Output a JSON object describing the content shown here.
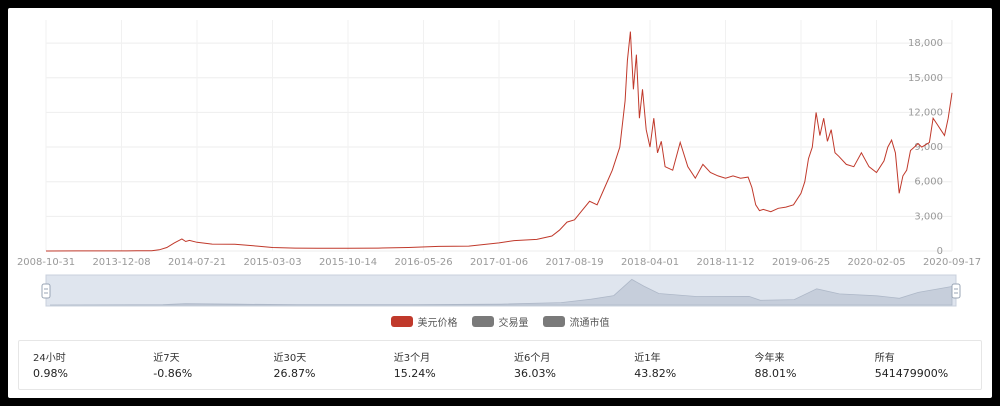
{
  "chart_data": {
    "type": "line",
    "x_tick_labels": [
      "2008-10-31",
      "2013-12-08",
      "2014-07-21",
      "2015-03-03",
      "2015-10-14",
      "2016-05-26",
      "2017-01-06",
      "2017-08-19",
      "2018-04-01",
      "2018-11-12",
      "2019-06-25",
      "2020-02-05",
      "2020-09-17"
    ],
    "y_tick_labels": [
      "0",
      "3,000",
      "6,000",
      "9,000",
      "12,000",
      "15,000",
      "18,000"
    ],
    "y_ticks": [
      0,
      3000,
      6000,
      9000,
      12000,
      15000,
      18000
    ],
    "ylim": [
      0,
      20000
    ],
    "y_axis_side": "right",
    "grid": true,
    "series": [
      {
        "name": "美元价格",
        "color": "#c0392b",
        "points": [
          [
            0,
            0
          ],
          [
            0.4,
            5
          ],
          [
            0.8,
            12
          ],
          [
            1.2,
            18
          ],
          [
            1.4,
            30
          ],
          [
            1.5,
            100
          ],
          [
            1.6,
            300
          ],
          [
            1.7,
            700
          ],
          [
            1.8,
            1050
          ],
          [
            1.85,
            820
          ],
          [
            1.9,
            920
          ],
          [
            2.0,
            750
          ],
          [
            2.2,
            600
          ],
          [
            2.5,
            580
          ],
          [
            2.8,
            420
          ],
          [
            3.0,
            300
          ],
          [
            3.3,
            250
          ],
          [
            3.6,
            230
          ],
          [
            4.0,
            240
          ],
          [
            4.4,
            250
          ],
          [
            4.8,
            300
          ],
          [
            5.2,
            400
          ],
          [
            5.6,
            420
          ],
          [
            6.0,
            700
          ],
          [
            6.2,
            900
          ],
          [
            6.5,
            1000
          ],
          [
            6.7,
            1300
          ],
          [
            6.8,
            1800
          ],
          [
            6.9,
            2500
          ],
          [
            7.0,
            2700
          ],
          [
            7.1,
            3500
          ],
          [
            7.2,
            4300
          ],
          [
            7.3,
            4000
          ],
          [
            7.4,
            5500
          ],
          [
            7.5,
            7000
          ],
          [
            7.6,
            9000
          ],
          [
            7.67,
            13000
          ],
          [
            7.7,
            16500
          ],
          [
            7.74,
            19000
          ],
          [
            7.78,
            14000
          ],
          [
            7.82,
            17000
          ],
          [
            7.86,
            11500
          ],
          [
            7.9,
            14000
          ],
          [
            7.95,
            10500
          ],
          [
            8.0,
            9000
          ],
          [
            8.05,
            11500
          ],
          [
            8.1,
            8500
          ],
          [
            8.15,
            9500
          ],
          [
            8.2,
            7300
          ],
          [
            8.3,
            7000
          ],
          [
            8.4,
            9400
          ],
          [
            8.5,
            7300
          ],
          [
            8.6,
            6300
          ],
          [
            8.7,
            7500
          ],
          [
            8.8,
            6800
          ],
          [
            8.9,
            6500
          ],
          [
            9.0,
            6300
          ],
          [
            9.1,
            6500
          ],
          [
            9.2,
            6300
          ],
          [
            9.3,
            6400
          ],
          [
            9.35,
            5500
          ],
          [
            9.4,
            4000
          ],
          [
            9.45,
            3500
          ],
          [
            9.5,
            3600
          ],
          [
            9.6,
            3400
          ],
          [
            9.7,
            3700
          ],
          [
            9.8,
            3800
          ],
          [
            9.9,
            4000
          ],
          [
            10.0,
            5000
          ],
          [
            10.05,
            6000
          ],
          [
            10.1,
            8000
          ],
          [
            10.15,
            9000
          ],
          [
            10.2,
            12000
          ],
          [
            10.25,
            10000
          ],
          [
            10.3,
            11500
          ],
          [
            10.35,
            9500
          ],
          [
            10.4,
            10500
          ],
          [
            10.45,
            8500
          ],
          [
            10.5,
            8200
          ],
          [
            10.6,
            7500
          ],
          [
            10.7,
            7300
          ],
          [
            10.8,
            8500
          ],
          [
            10.9,
            7300
          ],
          [
            11.0,
            6800
          ],
          [
            11.1,
            7800
          ],
          [
            11.15,
            9000
          ],
          [
            11.2,
            9600
          ],
          [
            11.25,
            8500
          ],
          [
            11.3,
            5000
          ],
          [
            11.35,
            6500
          ],
          [
            11.4,
            7000
          ],
          [
            11.45,
            8700
          ],
          [
            11.5,
            9000
          ],
          [
            11.55,
            9300
          ],
          [
            11.6,
            9000
          ],
          [
            11.7,
            9400
          ],
          [
            11.75,
            11500
          ],
          [
            11.8,
            11000
          ],
          [
            11.85,
            10500
          ],
          [
            11.9,
            10000
          ],
          [
            11.95,
            11500
          ],
          [
            12.0,
            13700
          ]
        ]
      }
    ],
    "navigator": {
      "points": [
        [
          0,
          0
        ],
        [
          1.5,
          300
        ],
        [
          1.8,
          1050
        ],
        [
          2.5,
          580
        ],
        [
          3.3,
          250
        ],
        [
          4.8,
          300
        ],
        [
          6.0,
          700
        ],
        [
          6.8,
          1800
        ],
        [
          7.2,
          4300
        ],
        [
          7.5,
          7000
        ],
        [
          7.74,
          19000
        ],
        [
          7.9,
          14000
        ],
        [
          8.1,
          8500
        ],
        [
          8.6,
          6300
        ],
        [
          9.3,
          6400
        ],
        [
          9.45,
          3500
        ],
        [
          9.9,
          4000
        ],
        [
          10.2,
          12000
        ],
        [
          10.5,
          8200
        ],
        [
          11.0,
          6800
        ],
        [
          11.3,
          5000
        ],
        [
          11.55,
          9300
        ],
        [
          12.0,
          13700
        ]
      ]
    }
  },
  "legend": {
    "items": [
      {
        "label": "美元价格",
        "color": "#c0392b"
      },
      {
        "label": "交易量",
        "color": "#7a7a7a"
      },
      {
        "label": "流通市值",
        "color": "#7a7a7a"
      }
    ]
  },
  "stats": [
    {
      "label": "24小时",
      "value": "0.98%"
    },
    {
      "label": "近7天",
      "value": "-0.86%"
    },
    {
      "label": "近30天",
      "value": "26.87%"
    },
    {
      "label": "近3个月",
      "value": "15.24%"
    },
    {
      "label": "近6个月",
      "value": "36.03%"
    },
    {
      "label": "近1年",
      "value": "43.82%"
    },
    {
      "label": "今年来",
      "value": "88.01%"
    },
    {
      "label": "所有",
      "value": "541479900%"
    }
  ]
}
